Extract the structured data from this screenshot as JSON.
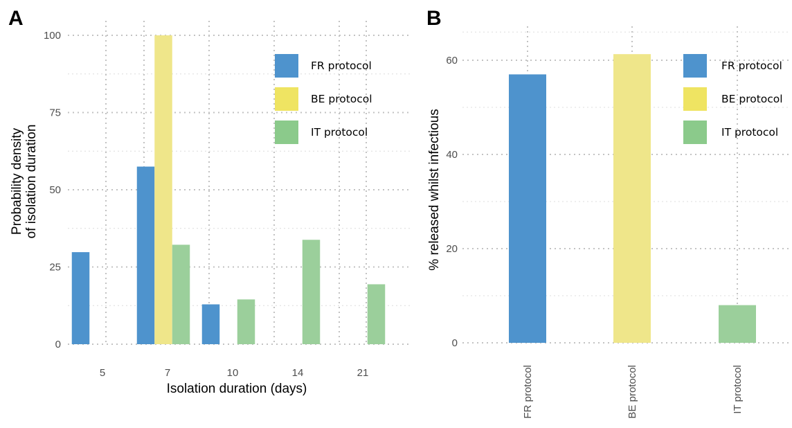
{
  "colors": {
    "FR": "#4e93cd",
    "BE": "#efe68a",
    "IT": "#9bcf9b"
  },
  "legend_colors": {
    "FR": "#4e93cd",
    "BE": "#efe462",
    "IT": "#8bca8b"
  },
  "chart_data": [
    {
      "panel": "A",
      "type": "bar",
      "title": "",
      "xlabel": "Isolation duration (days)",
      "ylabel": "Probability density\nof isolation duration",
      "categories": [
        "5",
        "7",
        "10",
        "14",
        "21"
      ],
      "ylim": [
        0,
        106
      ],
      "yticks": [
        0,
        25,
        50,
        75,
        100
      ],
      "grid": true,
      "legend": "top-right",
      "series": [
        {
          "name": "FR protocol",
          "key": "FR",
          "values": [
            29.8,
            57.5,
            12.9,
            0,
            0
          ]
        },
        {
          "name": "BE protocol",
          "key": "BE",
          "values": [
            0,
            100,
            0,
            0,
            0
          ]
        },
        {
          "name": "IT protocol",
          "key": "IT",
          "values": [
            0,
            32.2,
            14.5,
            33.8,
            19.4
          ]
        }
      ]
    },
    {
      "panel": "B",
      "type": "bar",
      "title": "",
      "xlabel": "",
      "ylabel": "% released whilst infectious",
      "categories": [
        "FR protocol",
        "BE protocol",
        "IT protocol"
      ],
      "ylim": [
        0,
        67
      ],
      "yticks": [
        0,
        20,
        40,
        60
      ],
      "grid": true,
      "legend": "top-right",
      "series": [
        {
          "name": "",
          "keys": [
            "FR",
            "BE",
            "IT"
          ],
          "values": [
            57,
            61.3,
            8
          ]
        }
      ],
      "legend_entries": [
        {
          "name": "FR protocol",
          "key": "FR"
        },
        {
          "name": "BE protocol",
          "key": "BE"
        },
        {
          "name": "IT protocol",
          "key": "IT"
        }
      ]
    }
  ]
}
